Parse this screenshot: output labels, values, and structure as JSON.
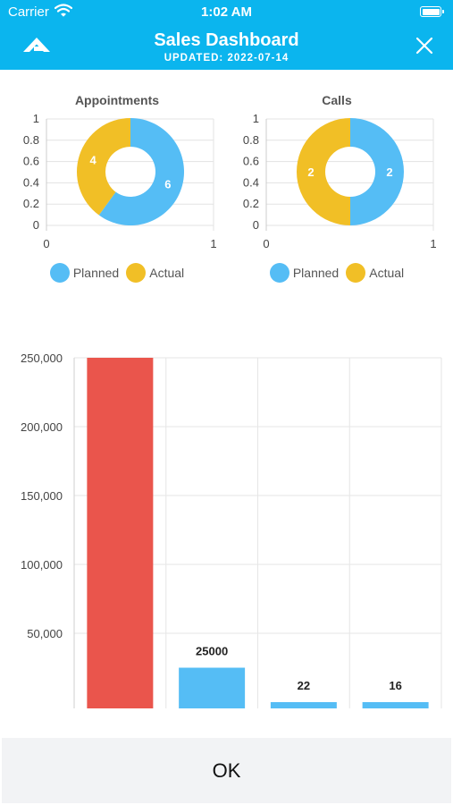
{
  "status_bar": {
    "carrier": "Carrier",
    "time": "1:02 AM"
  },
  "header": {
    "title": "Sales Dashboard",
    "subtitle": "UPDATED: 2022-07-14"
  },
  "colors": {
    "header_bg": "#0BB5EE",
    "planned": "#55BDF5",
    "actual": "#F1BF26",
    "bar_primary": "#EA554C"
  },
  "chart_data": [
    {
      "type": "pie",
      "title": "Appointments",
      "series": [
        {
          "name": "Planned",
          "value": 6
        },
        {
          "name": "Actual",
          "value": 4
        }
      ],
      "axis_ticks_y": [
        "1",
        "0.8",
        "0.6",
        "0.4",
        "0.2",
        "0"
      ],
      "axis_ticks_x": [
        "0",
        "1"
      ],
      "legend": "bottom"
    },
    {
      "type": "pie",
      "title": "Calls",
      "series": [
        {
          "name": "Planned",
          "value": 2
        },
        {
          "name": "Actual",
          "value": 2
        }
      ],
      "axis_ticks_y": [
        "1",
        "0.8",
        "0.6",
        "0.4",
        "0.2",
        "0"
      ],
      "axis_ticks_x": [
        "0",
        "1"
      ],
      "legend": "bottom"
    },
    {
      "type": "bar",
      "ylim": [
        0,
        250000
      ],
      "y_ticks": [
        "250,000",
        "200,000",
        "150,000",
        "100,000",
        "50,000"
      ],
      "values": [
        250000,
        25000,
        22,
        16
      ],
      "data_labels": [
        "",
        "25000",
        "22",
        "16"
      ],
      "grid": true
    }
  ],
  "footer": {
    "ok_label": "OK"
  }
}
